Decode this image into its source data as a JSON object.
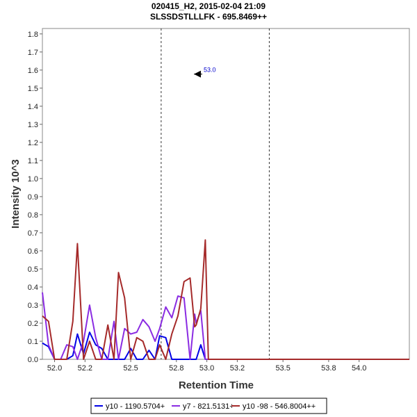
{
  "chart_data": {
    "type": "line",
    "title": "020415_H2, 2015-02-04 21:09",
    "subtitle": "SLSSDSTLLLFK - 695.8469++",
    "xlabel": "Retention Time",
    "ylabel": "Intensity 10^3",
    "xlim": [
      51.92,
      54.33
    ],
    "ylim": [
      0,
      1.83
    ],
    "xticks": [
      52.0,
      52.2,
      52.5,
      52.8,
      53.0,
      53.2,
      53.5,
      53.8,
      54.0
    ],
    "xtick_labels": [
      "52.0",
      "52.2",
      "52.5",
      "52.8",
      "53.0",
      "53.2",
      "53.5",
      "53.8",
      "54.0"
    ],
    "yticks": [
      0.0,
      0.1,
      0.2,
      0.3,
      0.4,
      0.5,
      0.6,
      0.7,
      0.8,
      0.9,
      1.0,
      1.1,
      1.2,
      1.3,
      1.4,
      1.5,
      1.6,
      1.7,
      1.8
    ],
    "ytick_labels": [
      "0.0",
      "0.1",
      "0.2",
      "0.3",
      "0.4",
      "0.5",
      "0.6",
      "0.7",
      "0.8",
      "0.9",
      "1.0",
      "1.1",
      "1.2",
      "1.3",
      "1.4",
      "1.5",
      "1.6",
      "1.7",
      "1.8"
    ],
    "vlines": [
      52.7,
      53.41
    ],
    "annotation": {
      "text": "53.0",
      "x": 52.97,
      "y": 1.57
    },
    "legend_position": "bottom",
    "series": [
      {
        "name": "y10 - 1190.5704+",
        "color": "#0000e6",
        "x": [
          51.92,
          51.96,
          52.0,
          52.04,
          52.08,
          52.12,
          52.15,
          52.19,
          52.23,
          52.27,
          52.31,
          52.35,
          52.39,
          52.42,
          52.46,
          52.5,
          52.54,
          52.58,
          52.62,
          52.66,
          52.69,
          52.73,
          52.77,
          52.81,
          52.85,
          52.89,
          52.92,
          52.93,
          52.96,
          52.99,
          53.01,
          53.04,
          53.08,
          53.12,
          53.16,
          53.2,
          53.23,
          53.27,
          53.31,
          53.35,
          53.39,
          53.42,
          53.46,
          53.5,
          53.54,
          53.58,
          53.62,
          53.66,
          53.7,
          53.74,
          53.77,
          53.81,
          53.85,
          53.89,
          53.93,
          53.97,
          54.01,
          54.05,
          54.09,
          54.12,
          54.16,
          54.2,
          54.24,
          54.28,
          54.33
        ],
        "values": [
          0.09,
          0.07,
          0.0,
          0.0,
          0.0,
          0.02,
          0.14,
          0.03,
          0.15,
          0.08,
          0.06,
          0.0,
          0.0,
          0.0,
          0.0,
          0.06,
          0.0,
          0.0,
          0.05,
          0.0,
          0.13,
          0.12,
          0.0,
          0.0,
          0.0,
          0.0,
          0.0,
          0.0,
          0.08,
          0.0,
          0.0,
          0.0,
          0.0,
          0.0,
          0.0,
          0.0,
          0.0,
          0.0,
          0.0,
          0.0,
          0.0,
          0.0,
          0.0,
          0.0,
          0.0,
          0.0,
          0.0,
          0.0,
          0.0,
          0.0,
          0.0,
          0.0,
          0.0,
          0.0,
          0.0,
          0.0,
          0.0,
          0.0,
          0.0,
          0.0,
          0.0,
          0.0,
          0.0,
          0.0,
          0.0
        ]
      },
      {
        "name": "y7 - 821.5131+",
        "color": "#8a2be2",
        "x": [
          51.92,
          51.96,
          52.0,
          52.04,
          52.08,
          52.12,
          52.15,
          52.19,
          52.23,
          52.27,
          52.31,
          52.35,
          52.39,
          52.42,
          52.46,
          52.5,
          52.54,
          52.58,
          52.62,
          52.66,
          52.69,
          52.73,
          52.77,
          52.81,
          52.85,
          52.89,
          52.92,
          52.93,
          52.96,
          52.99,
          53.01,
          53.04,
          53.08,
          53.12,
          53.16,
          53.2,
          53.23,
          53.27,
          53.31,
          53.35,
          53.39,
          53.42,
          53.46,
          53.5,
          53.54,
          53.58,
          53.62,
          53.66,
          53.7,
          53.74,
          53.77,
          53.81,
          53.85,
          53.89,
          53.93,
          53.97,
          54.01,
          54.05,
          54.09,
          54.12,
          54.16,
          54.2,
          54.24,
          54.28,
          54.33
        ],
        "values": [
          0.37,
          0.08,
          0.0,
          0.0,
          0.08,
          0.07,
          0.0,
          0.1,
          0.3,
          0.12,
          0.0,
          0.0,
          0.21,
          0.0,
          0.17,
          0.14,
          0.15,
          0.22,
          0.18,
          0.1,
          0.17,
          0.29,
          0.23,
          0.35,
          0.34,
          0.0,
          0.25,
          0.2,
          0.27,
          0.0,
          0.0,
          0.0,
          0.0,
          0.0,
          0.0,
          0.0,
          0.0,
          0.0,
          0.0,
          0.0,
          0.0,
          0.0,
          0.0,
          0.0,
          0.0,
          0.0,
          0.0,
          0.0,
          0.0,
          0.0,
          0.0,
          0.0,
          0.0,
          0.0,
          0.0,
          0.0,
          0.0,
          0.0,
          0.0,
          0.0,
          0.0,
          0.0,
          0.0,
          0.0,
          0.0
        ]
      },
      {
        "name": "y10 -98 - 546.8004++",
        "color": "#a52a2a",
        "x": [
          51.92,
          51.96,
          52.0,
          52.04,
          52.08,
          52.12,
          52.15,
          52.19,
          52.23,
          52.27,
          52.31,
          52.35,
          52.39,
          52.42,
          52.46,
          52.5,
          52.54,
          52.58,
          52.62,
          52.66,
          52.69,
          52.73,
          52.77,
          52.81,
          52.85,
          52.89,
          52.92,
          52.93,
          52.96,
          52.99,
          53.01,
          53.04,
          53.08,
          53.12,
          53.16,
          53.2,
          53.23,
          53.27,
          53.31,
          53.35,
          53.39,
          53.42,
          53.46,
          53.5,
          53.54,
          53.58,
          53.62,
          53.66,
          53.7,
          53.74,
          53.77,
          53.81,
          53.85,
          53.89,
          53.93,
          53.97,
          54.01,
          54.05,
          54.09,
          54.12,
          54.16,
          54.2,
          54.24,
          54.28,
          54.33
        ],
        "values": [
          0.24,
          0.21,
          0.0,
          0.0,
          0.0,
          0.21,
          0.64,
          0.0,
          0.1,
          0.0,
          0.0,
          0.19,
          0.0,
          0.48,
          0.34,
          0.0,
          0.12,
          0.1,
          0.0,
          0.0,
          0.08,
          0.0,
          0.14,
          0.24,
          0.43,
          0.45,
          0.18,
          0.19,
          0.28,
          0.66,
          0.0,
          0.0,
          0.0,
          0.0,
          0.0,
          0.0,
          0.0,
          0.0,
          0.0,
          0.0,
          0.0,
          0.0,
          0.0,
          0.0,
          0.0,
          0.0,
          0.0,
          0.0,
          0.0,
          0.0,
          0.0,
          0.0,
          0.0,
          0.0,
          0.0,
          0.0,
          0.0,
          0.0,
          0.0,
          0.0,
          0.0,
          0.0,
          0.0,
          0.0,
          0.0
        ]
      }
    ]
  }
}
